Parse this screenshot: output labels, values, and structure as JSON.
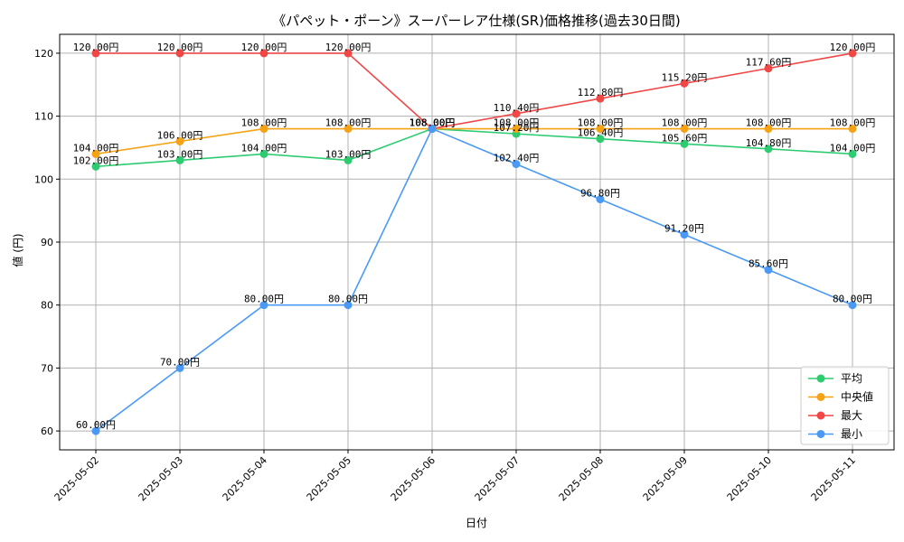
{
  "chart_data": {
    "type": "line",
    "title": "《パペット・ポーン》スーパーレア仕様(SR)価格推移(過去30日間)",
    "xlabel": "日付",
    "ylabel": "値 (円)",
    "categories": [
      "2025-05-02",
      "2025-05-03",
      "2025-05-04",
      "2025-05-05",
      "2025-05-06",
      "2025-05-07",
      "2025-05-08",
      "2025-05-09",
      "2025-05-10",
      "2025-05-11"
    ],
    "ylim": [
      57,
      123
    ],
    "yticks": [
      60,
      70,
      80,
      90,
      100,
      110,
      120
    ],
    "grid": true,
    "legend_position": "bottom-right",
    "series": [
      {
        "name": "平均",
        "color": "#2ecc71",
        "values": [
          102.0,
          103.0,
          104.0,
          103.0,
          108.0,
          107.2,
          106.4,
          105.6,
          104.8,
          104.0
        ],
        "labels": [
          "102.00円",
          "103.00円",
          "104.00円",
          "103.00円",
          "108.00円",
          "107.20円",
          "106.40円",
          "105.60円",
          "104.80円",
          "104.00円"
        ]
      },
      {
        "name": "中央値",
        "color": "#f5a214",
        "values": [
          104.0,
          106.0,
          108.0,
          108.0,
          108.0,
          108.0,
          108.0,
          108.0,
          108.0,
          108.0
        ],
        "labels": [
          "104.00円",
          "106.00円",
          "108.00円",
          "108.00円",
          "108.00円",
          "108.00円",
          "108.00円",
          "108.00円",
          "108.00円",
          "108.00円"
        ]
      },
      {
        "name": "最大",
        "color": "#f04747",
        "values": [
          120.0,
          120.0,
          120.0,
          120.0,
          108.0,
          110.4,
          112.8,
          115.2,
          117.6,
          120.0
        ],
        "labels": [
          "120.00円",
          "120.00円",
          "120.00円",
          "120.00円",
          "108.00円",
          "110.40円",
          "112.80円",
          "115.20円",
          "117.60円",
          "120.00円"
        ]
      },
      {
        "name": "最小",
        "color": "#4a9af5",
        "values": [
          60.0,
          70.0,
          80.0,
          80.0,
          108.0,
          102.4,
          96.8,
          91.2,
          85.6,
          80.0
        ],
        "labels": [
          "60.00円",
          "70.00円",
          "80.00円",
          "80.00円",
          "108.00円",
          "102.40円",
          "96.80円",
          "91.20円",
          "85.60円",
          "80.00円"
        ]
      }
    ]
  }
}
